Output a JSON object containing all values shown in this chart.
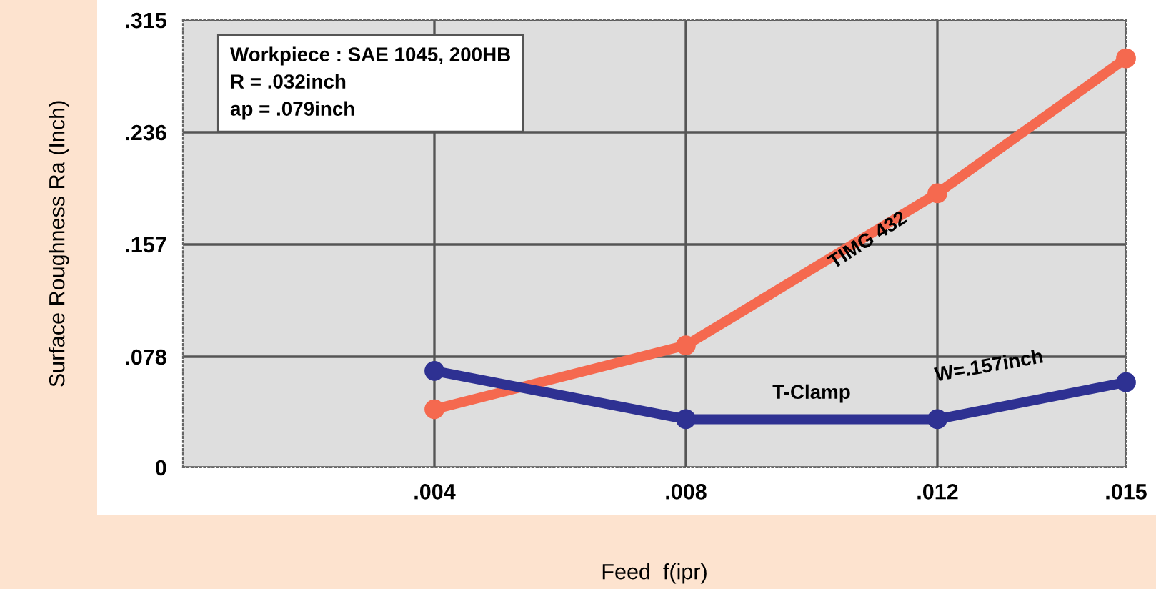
{
  "chart_data": {
    "type": "line",
    "xlabel": "Feed  f(ipr)",
    "ylabel": "Surface Roughness Ra (Inch)",
    "xlim": [
      0,
      0.015
    ],
    "xticks": [
      {
        "value": 0.004,
        "label": ".004"
      },
      {
        "value": 0.008,
        "label": ".008"
      },
      {
        "value": 0.012,
        "label": ".012"
      },
      {
        "value": 0.015,
        "label": ".015"
      }
    ],
    "ylim": [
      0,
      0.315
    ],
    "yticks": [
      0,
      {
        "value": 0.078,
        "label": ".078"
      },
      {
        "value": 0.157,
        "label": ".157"
      },
      {
        "value": 0.236,
        "label": ".236"
      },
      {
        "value": 0.315,
        "label": ".315"
      }
    ],
    "grid": true,
    "marker": "circle",
    "line_style": "solid",
    "series": [
      {
        "name": "TIMG 432",
        "color": "#f5694f",
        "x": [
          0.004,
          0.008,
          0.012,
          0.015
        ],
        "values": [
          0.041,
          0.086,
          0.193,
          0.288
        ]
      },
      {
        "name": "T-Clamp",
        "color": "#2e3192",
        "x": [
          0.004,
          0.008,
          0.012,
          0.015
        ],
        "values": [
          0.068,
          0.034,
          0.034,
          0.06
        ]
      }
    ],
    "annotations": [
      "Workpiece : SAE 1045, 200HB\nR = .032inch\nap = .079inch",
      "W=.157inch"
    ]
  }
}
